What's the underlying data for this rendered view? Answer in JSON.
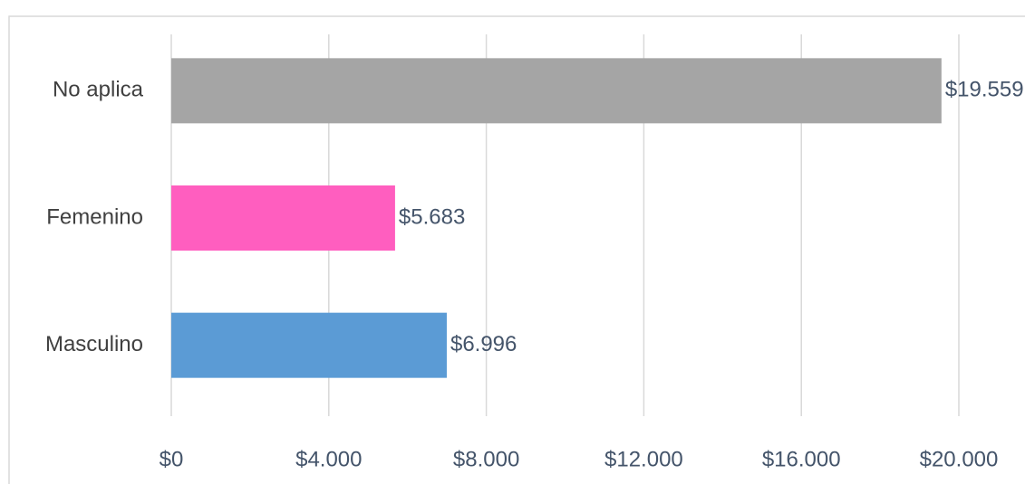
{
  "chart_data": {
    "type": "bar",
    "orientation": "horizontal",
    "categories": [
      "No aplica",
      "Femenino",
      "Masculino"
    ],
    "values": [
      19559,
      5683,
      6996
    ],
    "value_labels": [
      "$19.559",
      "$5.683",
      "$6.996"
    ],
    "colors": [
      "#a5a5a5",
      "#ff5ebf",
      "#5b9bd5"
    ],
    "xlim": [
      0,
      20000
    ],
    "xticks": [
      {
        "value": 0,
        "label": "$0"
      },
      {
        "value": 4000,
        "label": "$4.000"
      },
      {
        "value": 8000,
        "label": "$8.000"
      },
      {
        "value": 12000,
        "label": "$12.000"
      },
      {
        "value": 16000,
        "label": "$16.000"
      },
      {
        "value": 20000,
        "label": "$20.000"
      }
    ],
    "grid": true
  }
}
